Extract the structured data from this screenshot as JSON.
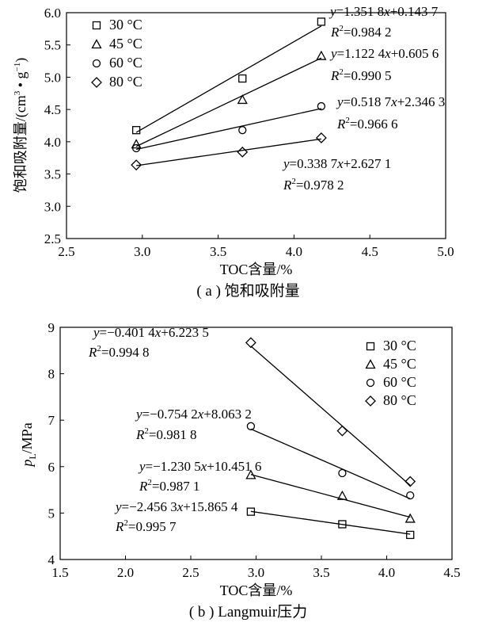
{
  "chart_data": [
    {
      "type": "scatter",
      "caption": "( a ) 饱和吸附量",
      "xlabel": "TOC含量/%",
      "ylabel": "饱和吸附量/(cm³ • g⁻¹)",
      "xlim": [
        2.5,
        5.0
      ],
      "ylim": [
        2.5,
        6.0
      ],
      "xticks": [
        2.5,
        3.0,
        3.5,
        4.0,
        4.5,
        5.0
      ],
      "yticks": [
        2.5,
        3.0,
        3.5,
        4.0,
        4.5,
        5.0,
        5.5,
        6.0
      ],
      "x": [
        2.96,
        3.66,
        4.18
      ],
      "legend_position": "top-left",
      "series": [
        {
          "name": "30 °C",
          "marker": "square",
          "values": [
            4.18,
            4.98,
            5.86
          ],
          "fit": {
            "slope": 1.3518,
            "intercept": 0.1437
          },
          "equation": "y=1.351 8x+0.143 7",
          "r2": "R²=0.984 2"
        },
        {
          "name": "45 °C",
          "marker": "triangle",
          "values": [
            3.96,
            4.65,
            5.33
          ],
          "fit": {
            "slope": 1.1224,
            "intercept": 0.6056
          },
          "equation": "y=1.122 4x+0.605 6",
          "r2": "R²=0.990 5"
        },
        {
          "name": "60 °C",
          "marker": "circle",
          "values": [
            3.9,
            4.18,
            4.55
          ],
          "fit": {
            "slope": 0.5187,
            "intercept": 2.3463
          },
          "equation": "y=0.518 7x+2.346 3",
          "r2": "R²=0.966 6"
        },
        {
          "name": "80 °C",
          "marker": "diamond",
          "values": [
            3.64,
            3.84,
            4.06
          ],
          "fit": {
            "slope": 0.3387,
            "intercept": 2.6271
          },
          "equation": "y=0.338 7x+2.627 1",
          "r2": "R²=0.978 2"
        }
      ]
    },
    {
      "type": "scatter",
      "caption": "( b ) Langmuir压力",
      "xlabel": "TOC含量/%",
      "ylabel": "pL/MPa",
      "xlim": [
        1.5,
        4.5
      ],
      "ylim": [
        4,
        9
      ],
      "xticks": [
        1.5,
        2.0,
        2.5,
        3.0,
        3.5,
        4.0,
        4.5
      ],
      "yticks": [
        4,
        5,
        6,
        7,
        8,
        9
      ],
      "x": [
        2.96,
        3.66,
        4.18
      ],
      "legend_position": "top-right",
      "series": [
        {
          "name": "30 °C",
          "marker": "square",
          "values": [
            5.03,
            4.76,
            4.53
          ],
          "fit": {
            "slope": -0.4014,
            "intercept": 6.2235
          },
          "equation": "y=−0.401 4x+6.223 5",
          "r2": "R²=0.994 8"
        },
        {
          "name": "45 °C",
          "marker": "triangle",
          "values": [
            5.82,
            5.37,
            4.88
          ],
          "fit": {
            "slope": -0.7542,
            "intercept": 8.0632
          },
          "equation": "y=−0.754 2x+8.063 2",
          "r2": "R²=0.981 8"
        },
        {
          "name": "60 °C",
          "marker": "circle",
          "values": [
            6.87,
            5.86,
            5.38
          ],
          "fit": {
            "slope": -1.2305,
            "intercept": 10.4516
          },
          "equation": "y=−1.230 5x+10.451 6",
          "r2": "R²=0.987 1"
        },
        {
          "name": "80 °C",
          "marker": "diamond",
          "values": [
            8.67,
            6.77,
            5.68
          ],
          "fit": {
            "slope": -2.4563,
            "intercept": 15.8654
          },
          "equation": "y=−2.456 3x+15.865 4",
          "r2": "R²=0.995 7"
        }
      ]
    }
  ]
}
